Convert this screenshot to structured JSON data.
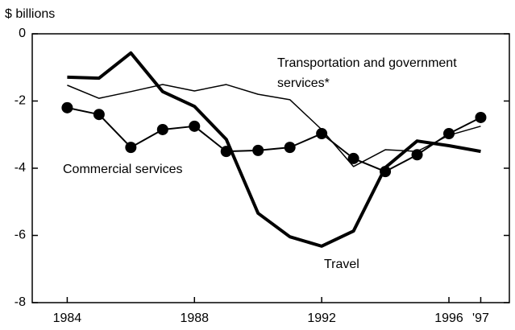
{
  "chart_data": {
    "type": "line",
    "ylabel": "$ billions",
    "x": [
      1984,
      1985,
      1986,
      1987,
      1988,
      1989,
      1990,
      1991,
      1992,
      1993,
      1994,
      1995,
      1996,
      1997
    ],
    "xlim": [
      1982.9,
      1997.9
    ],
    "xticks": [
      1984,
      1988,
      1992,
      1996,
      {
        "value": 1997,
        "label": "'97"
      }
    ],
    "ylim": [
      -8,
      0
    ],
    "yticks": [
      0,
      -2,
      -4,
      -6,
      -8
    ],
    "series": [
      {
        "name": "Transportation and government services*",
        "color": "#000000",
        "width": 1.5,
        "markers": false,
        "values": [
          -1.53,
          -1.92,
          -1.72,
          -1.51,
          -1.7,
          -1.51,
          -1.8,
          -1.96,
          -2.85,
          -3.95,
          -3.45,
          -3.5,
          -3.02,
          -2.75
        ]
      },
      {
        "name": "Commercial services",
        "color": "#000000",
        "width": 2,
        "markers": true,
        "values": [
          -2.2,
          -2.4,
          -3.38,
          -2.85,
          -2.75,
          -3.5,
          -3.47,
          -3.38,
          -2.97,
          -3.71,
          -4.1,
          -3.6,
          -2.97,
          -2.49
        ]
      },
      {
        "name": "Travel",
        "color": "#000000",
        "width": 4,
        "markers": false,
        "values": [
          -1.29,
          -1.32,
          -0.57,
          -1.72,
          -2.16,
          -3.14,
          -5.34,
          -6.04,
          -6.32,
          -5.87,
          -3.98,
          -3.19,
          -3.33,
          -3.5
        ]
      }
    ]
  }
}
